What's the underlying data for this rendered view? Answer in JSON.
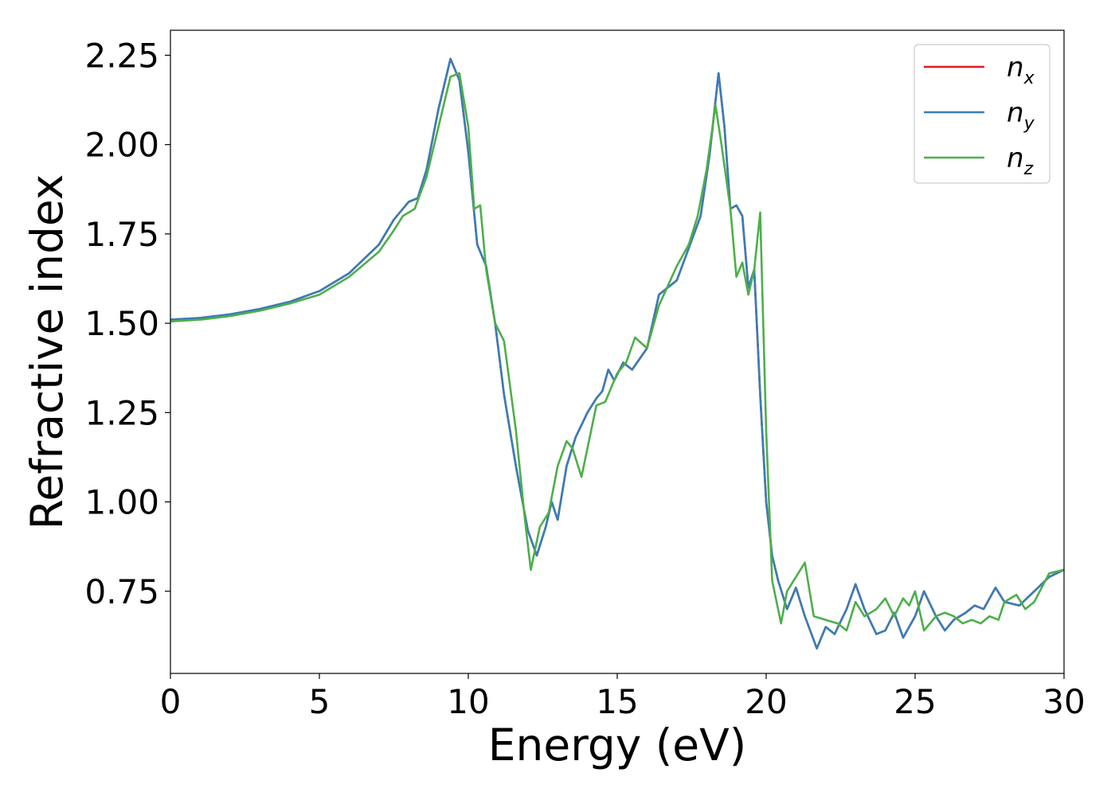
{
  "chart_data": {
    "type": "line",
    "title": "",
    "xlabel": "Energy (eV)",
    "ylabel": "Refractive index",
    "xlim": [
      0,
      30
    ],
    "ylim": [
      0.52,
      2.32
    ],
    "xticks": [
      0,
      5,
      10,
      15,
      20,
      25,
      30
    ],
    "xtick_labels": [
      "0",
      "5",
      "10",
      "15",
      "20",
      "25",
      "30"
    ],
    "yticks": [
      0.75,
      1.0,
      1.25,
      1.5,
      1.75,
      2.0,
      2.25
    ],
    "ytick_labels": [
      "0.75",
      "1.00",
      "1.25",
      "1.50",
      "1.75",
      "2.00",
      "2.25"
    ],
    "grid": false,
    "legend_position": "top-right",
    "series": [
      {
        "name": "n_x",
        "legend_main": "n",
        "legend_sub": "x",
        "color": "#e41a1c",
        "x": [
          0,
          1,
          2,
          3,
          4,
          5,
          6,
          7,
          7.5,
          8,
          8.3,
          8.6,
          9,
          9.4,
          9.7,
          10,
          10.3,
          10.6,
          10.9,
          11.2,
          11.6,
          12,
          12.3,
          12.6,
          12.8,
          13,
          13.3,
          13.6,
          14,
          14.3,
          14.5,
          14.7,
          14.9,
          15.2,
          15.5,
          16,
          16.4,
          17,
          17.4,
          17.8,
          18.1,
          18.4,
          18.6,
          18.8,
          19,
          19.2,
          19.4,
          19.6,
          19.8,
          20,
          20.2,
          20.4,
          20.7,
          21,
          21.3,
          21.7,
          22,
          22.3,
          22.7,
          23,
          23.3,
          23.7,
          24,
          24.3,
          24.6,
          25,
          25.3,
          25.7,
          26,
          26.3,
          26.7,
          27,
          27.3,
          27.7,
          28,
          28.5,
          29,
          29.5,
          30
        ],
        "y": [
          1.51,
          1.515,
          1.525,
          1.54,
          1.56,
          1.59,
          1.64,
          1.72,
          1.79,
          1.84,
          1.85,
          1.93,
          2.1,
          2.24,
          2.18,
          1.98,
          1.72,
          1.66,
          1.5,
          1.3,
          1.1,
          0.92,
          0.85,
          0.93,
          1.0,
          0.95,
          1.1,
          1.18,
          1.25,
          1.29,
          1.31,
          1.37,
          1.34,
          1.39,
          1.37,
          1.43,
          1.58,
          1.62,
          1.71,
          1.8,
          1.97,
          2.2,
          2.05,
          1.82,
          1.83,
          1.8,
          1.6,
          1.65,
          1.3,
          1.0,
          0.85,
          0.78,
          0.7,
          0.76,
          0.68,
          0.59,
          0.65,
          0.63,
          0.7,
          0.77,
          0.7,
          0.63,
          0.64,
          0.69,
          0.62,
          0.68,
          0.75,
          0.68,
          0.64,
          0.67,
          0.69,
          0.71,
          0.7,
          0.76,
          0.72,
          0.71,
          0.75,
          0.79,
          0.81
        ]
      },
      {
        "name": "n_y",
        "legend_main": "n",
        "legend_sub": "y",
        "color": "#377eb8",
        "x": [
          0,
          1,
          2,
          3,
          4,
          5,
          6,
          7,
          7.5,
          8,
          8.3,
          8.6,
          9,
          9.4,
          9.7,
          10,
          10.3,
          10.6,
          10.9,
          11.2,
          11.6,
          12,
          12.3,
          12.6,
          12.8,
          13,
          13.3,
          13.6,
          14,
          14.3,
          14.5,
          14.7,
          14.9,
          15.2,
          15.5,
          16,
          16.4,
          17,
          17.4,
          17.8,
          18.1,
          18.4,
          18.6,
          18.8,
          19,
          19.2,
          19.4,
          19.6,
          19.8,
          20,
          20.2,
          20.4,
          20.7,
          21,
          21.3,
          21.7,
          22,
          22.3,
          22.7,
          23,
          23.3,
          23.7,
          24,
          24.3,
          24.6,
          25,
          25.3,
          25.7,
          26,
          26.3,
          26.7,
          27,
          27.3,
          27.7,
          28,
          28.5,
          29,
          29.5,
          30
        ],
        "y": [
          1.51,
          1.515,
          1.525,
          1.54,
          1.56,
          1.59,
          1.64,
          1.72,
          1.79,
          1.84,
          1.85,
          1.93,
          2.1,
          2.24,
          2.18,
          1.98,
          1.72,
          1.66,
          1.5,
          1.3,
          1.1,
          0.92,
          0.85,
          0.93,
          1.0,
          0.95,
          1.1,
          1.18,
          1.25,
          1.29,
          1.31,
          1.37,
          1.34,
          1.39,
          1.37,
          1.43,
          1.58,
          1.62,
          1.71,
          1.8,
          1.97,
          2.2,
          2.05,
          1.82,
          1.83,
          1.8,
          1.6,
          1.65,
          1.3,
          1.0,
          0.85,
          0.78,
          0.7,
          0.76,
          0.68,
          0.59,
          0.65,
          0.63,
          0.7,
          0.77,
          0.7,
          0.63,
          0.64,
          0.69,
          0.62,
          0.68,
          0.75,
          0.68,
          0.64,
          0.67,
          0.69,
          0.71,
          0.7,
          0.76,
          0.72,
          0.71,
          0.75,
          0.79,
          0.81
        ]
      },
      {
        "name": "n_z",
        "legend_main": "n",
        "legend_sub": "z",
        "color": "#4daf4a",
        "x": [
          0,
          1,
          2,
          3,
          4,
          5,
          6,
          7,
          7.5,
          7.8,
          8.2,
          8.6,
          9,
          9.4,
          9.7,
          10,
          10.2,
          10.4,
          10.6,
          10.9,
          11.2,
          11.6,
          11.9,
          12.1,
          12.4,
          12.7,
          13,
          13.3,
          13.5,
          13.8,
          14,
          14.3,
          14.6,
          15,
          15.3,
          15.6,
          16,
          16.4,
          17,
          17.4,
          17.7,
          18,
          18.3,
          18.5,
          18.8,
          19,
          19.2,
          19.4,
          19.6,
          19.8,
          20,
          20.2,
          20.5,
          20.7,
          21,
          21.3,
          21.6,
          22,
          22.4,
          22.7,
          23,
          23.3,
          23.7,
          24,
          24.3,
          24.6,
          24.8,
          25,
          25.3,
          25.5,
          25.7,
          26,
          26.3,
          26.6,
          26.9,
          27.2,
          27.5,
          27.8,
          28,
          28.4,
          28.7,
          29,
          29.5,
          30
        ],
        "y": [
          1.505,
          1.51,
          1.52,
          1.535,
          1.555,
          1.58,
          1.63,
          1.7,
          1.76,
          1.8,
          1.82,
          1.91,
          2.05,
          2.19,
          2.2,
          2.05,
          1.82,
          1.83,
          1.65,
          1.5,
          1.45,
          1.2,
          0.95,
          0.81,
          0.93,
          0.97,
          1.1,
          1.17,
          1.15,
          1.07,
          1.15,
          1.27,
          1.28,
          1.36,
          1.39,
          1.46,
          1.43,
          1.55,
          1.66,
          1.72,
          1.8,
          1.93,
          2.11,
          2.0,
          1.82,
          1.63,
          1.67,
          1.58,
          1.65,
          1.81,
          1.2,
          0.78,
          0.66,
          0.75,
          0.79,
          0.83,
          0.68,
          0.67,
          0.66,
          0.64,
          0.72,
          0.68,
          0.7,
          0.73,
          0.68,
          0.73,
          0.71,
          0.75,
          0.64,
          0.66,
          0.68,
          0.69,
          0.68,
          0.66,
          0.67,
          0.66,
          0.68,
          0.67,
          0.72,
          0.74,
          0.7,
          0.72,
          0.8,
          0.81
        ]
      }
    ]
  }
}
